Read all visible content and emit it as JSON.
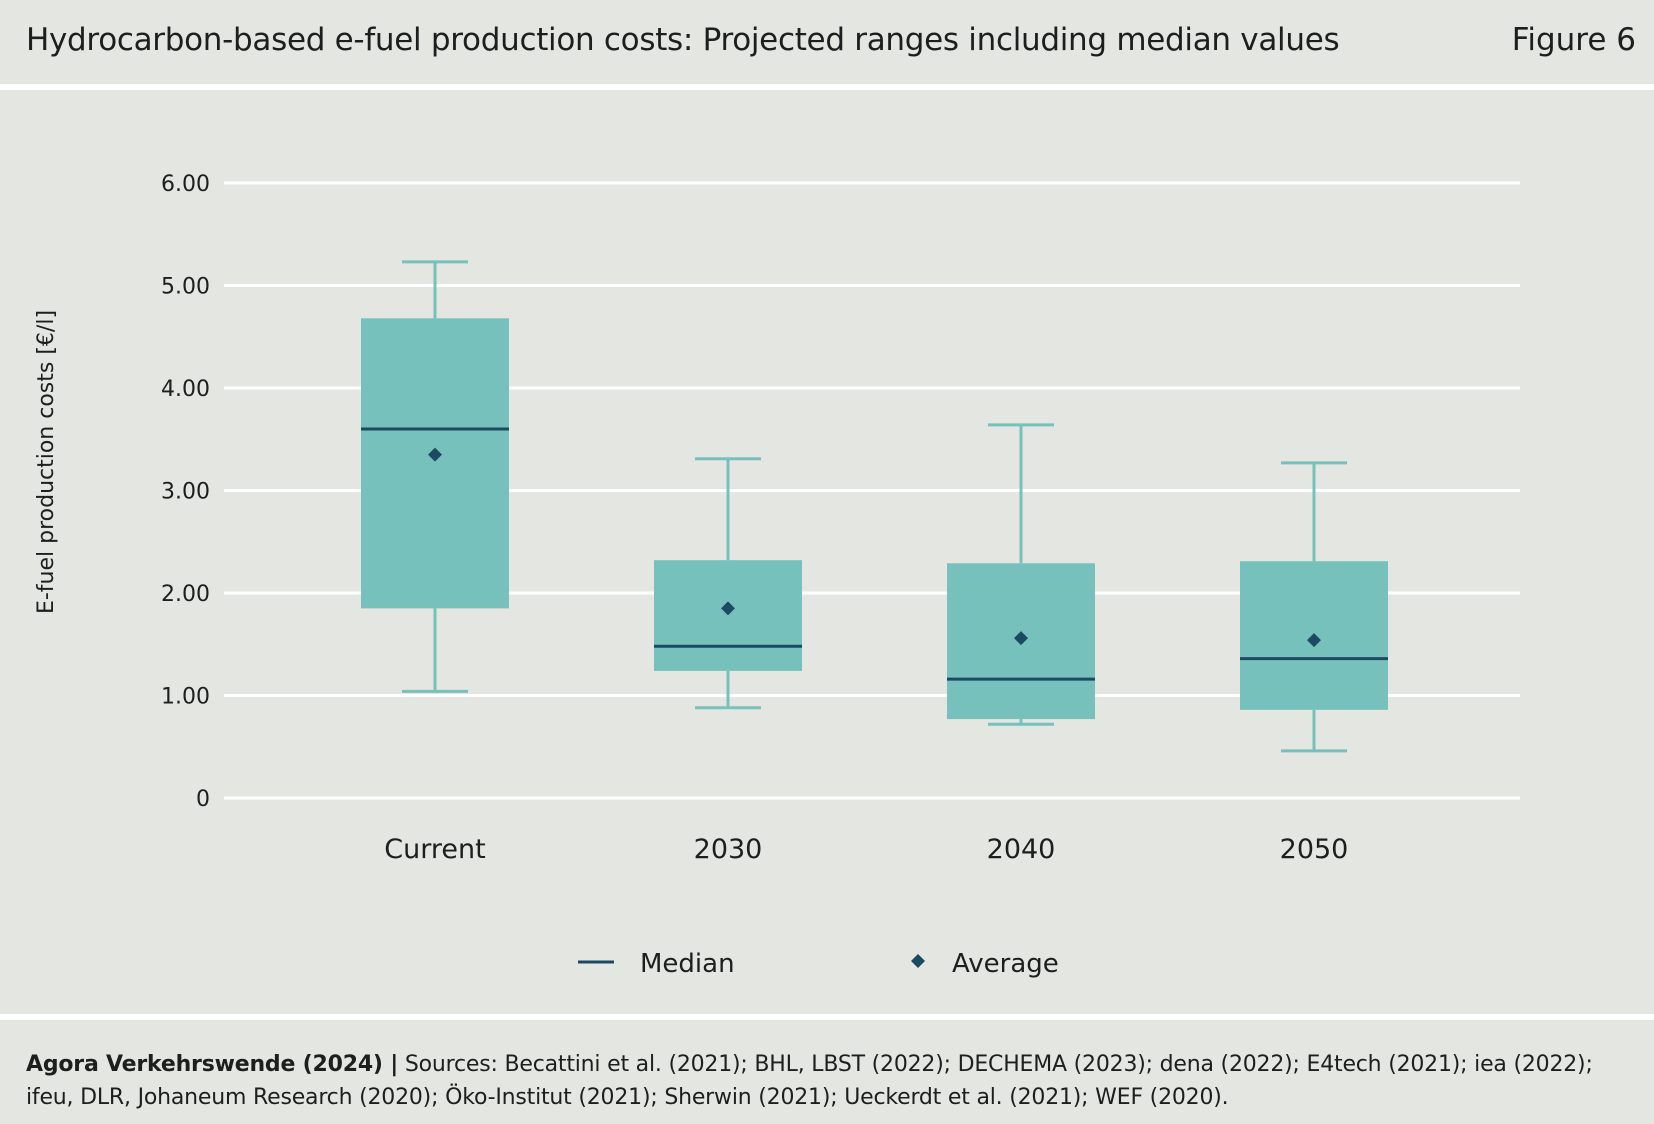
{
  "header": {
    "title": "Hydrocarbon-based e-fuel production costs: Projected ranges including median values",
    "figure_label": "Figure 6"
  },
  "footer": {
    "org": "Agora Verkehrswende (2024) |",
    "sources_line1": " Sources: Becattini et al. (2021); BHL, LBST (2022); DECHEMA (2023); dena (2022); E4tech (2021); iea (2022);",
    "sources_line2": "ifeu, DLR, Johaneum Research (2020); Öko-Institut (2021); Sherwin (2021); Ueckerdt et al. (2021); WEF (2020)."
  },
  "colors": {
    "box_fill": "#77c1bc",
    "median_line": "#1d4a63",
    "average_marker": "#1d4a63",
    "grid": "#ffffff",
    "background": "#e4e6e1"
  },
  "chart_data": {
    "type": "box",
    "ylabel": "E-fuel production costs [€/l]",
    "ylim": [
      0,
      6
    ],
    "yticks": [
      0,
      1,
      2,
      3,
      4,
      5,
      6
    ],
    "ytick_labels": [
      "0",
      "1.00",
      "2.00",
      "3.00",
      "4.00",
      "5.00",
      "6.00"
    ],
    "grid": true,
    "legend_position": "bottom-center",
    "legend": [
      {
        "label": "Median",
        "marker": "line"
      },
      {
        "label": "Average",
        "marker": "diamond"
      }
    ],
    "categories": [
      "Current",
      "2030",
      "2040",
      "2050"
    ],
    "min": [
      1.04,
      0.88,
      0.72,
      0.46
    ],
    "q1": [
      1.85,
      1.24,
      0.77,
      0.86
    ],
    "median": [
      3.6,
      1.48,
      1.16,
      1.36
    ],
    "q3": [
      4.68,
      2.32,
      2.29,
      2.31
    ],
    "max": [
      5.23,
      3.31,
      3.64,
      3.27
    ],
    "average": [
      3.35,
      1.85,
      1.56,
      1.54
    ]
  }
}
